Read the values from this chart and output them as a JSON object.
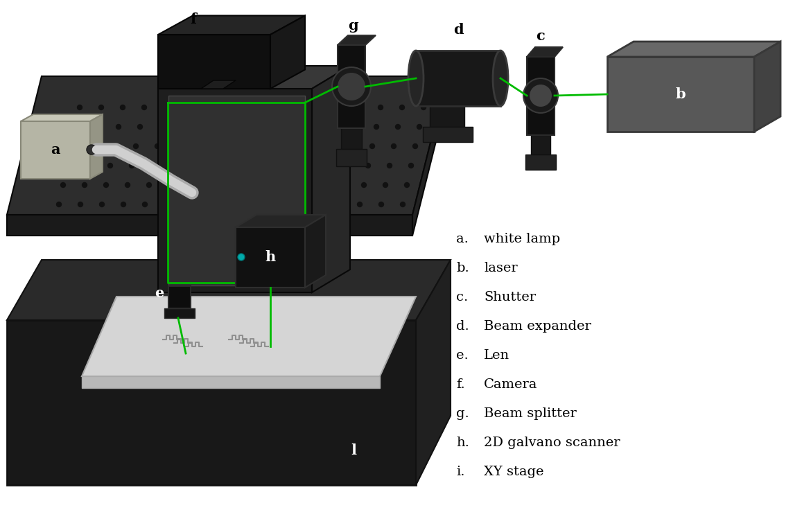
{
  "legend_items": [
    [
      "a.",
      "white lamp"
    ],
    [
      "b.",
      "laser"
    ],
    [
      "c.",
      "Shutter"
    ],
    [
      "d.",
      "Beam expander"
    ],
    [
      "e.",
      "Len"
    ],
    [
      "f.",
      "Camera"
    ],
    [
      "g.",
      "Beam splitter"
    ],
    [
      "h.",
      "2D galvano scanner"
    ],
    [
      "i.",
      "XY stage"
    ]
  ],
  "bg_color": "#ffffff",
  "green_color": "#00bb00",
  "dark_table": "#2d2d2d",
  "dark_table_front": "#1a1a1a",
  "dark_table_right": "#222222",
  "dot_color": "#111111",
  "box_front": "#1e1e1e",
  "box_top": "#383838",
  "box_right": "#282828",
  "cam_dark": "#111111",
  "cam_top": "#2a2a2a",
  "stage_top": "#2a2a2a",
  "stage_front": "#181818",
  "plate_color": "#d5d5d5",
  "lamp_face": "#b5b5a5",
  "lamp_top_c": "#c8c8b8",
  "lamp_right_c": "#959585",
  "laser_face": "#585858",
  "laser_top": "#686868",
  "laser_right": "#424242"
}
